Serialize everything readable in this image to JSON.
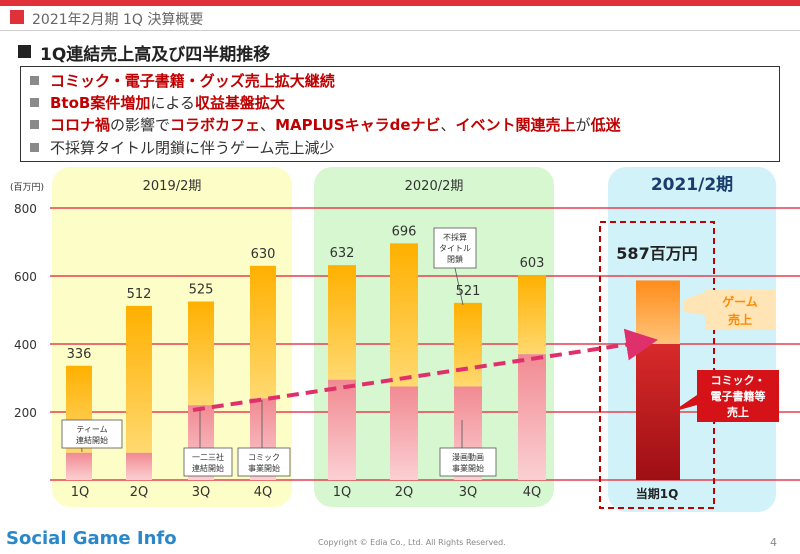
{
  "header": {
    "period_title": "2021年2月期 1Q 決算概要",
    "section_title": "1Q連結売上高及び四半期推移"
  },
  "highlights": [
    {
      "parts": [
        {
          "text": "コミック・電子書籍・グッズ売上拡大継続",
          "style": "red"
        }
      ]
    },
    {
      "parts": [
        {
          "text": "BtoB案件増加",
          "style": "red"
        },
        {
          "text": "による",
          "style": "gray"
        },
        {
          "text": "収益基盤拡大",
          "style": "red"
        }
      ]
    },
    {
      "parts": [
        {
          "text": "コロナ禍",
          "style": "red"
        },
        {
          "text": "の影響で",
          "style": "gray"
        },
        {
          "text": "コラボカフェ",
          "style": "red"
        },
        {
          "text": "、",
          "style": "gray"
        },
        {
          "text": "MAPLUSキャラdeナビ",
          "style": "red"
        },
        {
          "text": "、",
          "style": "gray"
        },
        {
          "text": "イベント関連売上",
          "style": "red"
        },
        {
          "text": "が",
          "style": "gray"
        },
        {
          "text": "低迷",
          "style": "red"
        }
      ]
    },
    {
      "parts": [
        {
          "text": "不採算タイトル閉鎖に伴うゲーム売上減少",
          "style": "gray"
        }
      ]
    }
  ],
  "chart_data": {
    "type": "bar",
    "stacked": true,
    "unit": "(百万円)",
    "ylim": [
      0,
      800
    ],
    "yticks": [
      200,
      400,
      600,
      800
    ],
    "grid": true,
    "groups": [
      {
        "label": "2019/2期",
        "color": "#fdfdc7",
        "count": 4
      },
      {
        "label": "2020/2期",
        "color": "#d7f7d0",
        "count": 4
      },
      {
        "label": "2021/2期",
        "color": "#d2f2fa",
        "count": 1
      }
    ],
    "categories": [
      "1Q",
      "2Q",
      "3Q",
      "4Q",
      "1Q",
      "2Q",
      "3Q",
      "4Q",
      "当期1Q"
    ],
    "totals": [
      336,
      512,
      525,
      630,
      632,
      696,
      521,
      603,
      587
    ],
    "total_labels": [
      "336",
      "512",
      "525",
      "630",
      "632",
      "696",
      "521",
      "603",
      "587百万円"
    ],
    "comic_values": [
      80,
      80,
      220,
      240,
      295,
      275,
      275,
      370,
      400
    ],
    "series": [
      {
        "name": "コミック・電子書籍等売上",
        "color": "#f5a0a6"
      },
      {
        "name": "ゲーム売上",
        "color": "#ffc02a"
      }
    ],
    "annotations": [
      {
        "text": "ティーム\n連結開始",
        "bar": 0
      },
      {
        "text": "一二三社\n連結開始",
        "bar": 2
      },
      {
        "text": "コミック\n事業開始",
        "bar": 3
      },
      {
        "text": "不採算\nタイトル\n閉鎖",
        "bar": 6
      },
      {
        "text": "漫画動画\n事業開始",
        "bar": 6
      }
    ],
    "callouts": {
      "game": "ゲーム\n売上",
      "comic": "コミック・\n電子書籍等\n売上"
    }
  },
  "footer": {
    "watermark_brand": "Social Game Info",
    "copyright": "Copyright © Edia Co., Ltd. All Rights Reserved.",
    "page_number": "4"
  }
}
